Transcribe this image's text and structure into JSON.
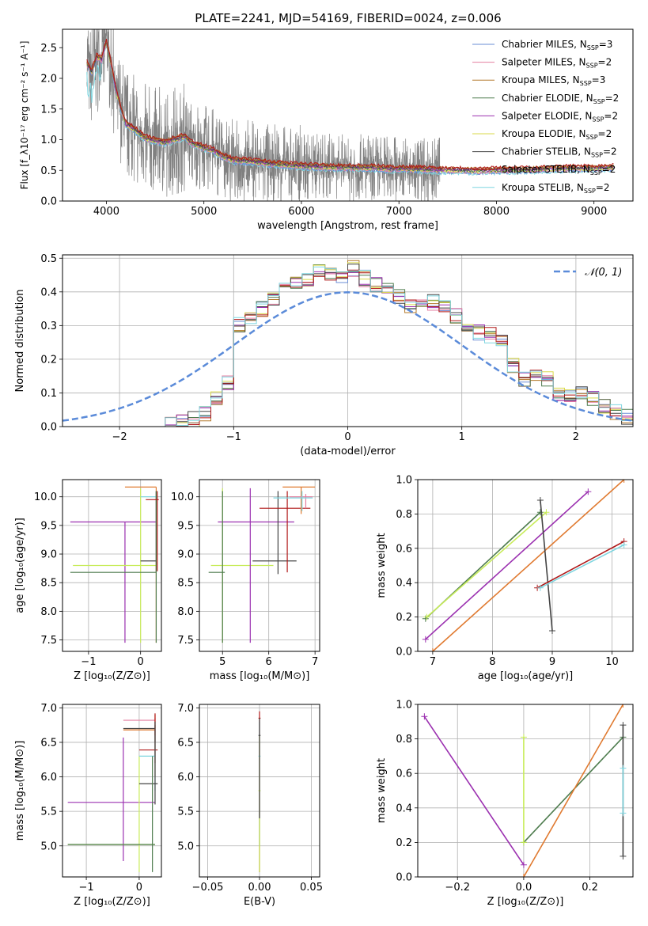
{
  "colors": {
    "chabrier_miles": "#6a8cd6",
    "salpeter_miles": "#e57fa0",
    "kroupa_miles": "#b3782a",
    "chabrier_elodie": "#4e7c4e",
    "salpeter_elodie": "#9b30b0",
    "kroupa_elodie": "#d9d94a",
    "chabrier_stelib": "#444444",
    "salpeter_stelib": "#b01818",
    "kroupa_stelib": "#7fd6e0",
    "data": "#808080",
    "normal": "#5b8bd9",
    "grid": "#b0b0b0",
    "orange": "#e07a30",
    "lime": "#c8ec5a"
  },
  "chart_data": [
    {
      "id": "spectrum",
      "type": "line",
      "title": "PLATE=2241, MJD=54169, FIBERID=0024, z=0.006",
      "xlabel": "wavelength [Angstrom, rest frame]",
      "ylabel": "Flux [f_λ10⁻¹⁷ erg cm⁻² s⁻¹ A⁻¹]",
      "xlim": [
        3550,
        9400
      ],
      "ylim": [
        0,
        2.8
      ],
      "xticks": [
        4000,
        5000,
        6000,
        7000,
        8000,
        9000
      ],
      "yticks": [
        0,
        0.5,
        1.0,
        1.5,
        2.0,
        2.5
      ],
      "ytick_labels": [
        "0.0",
        "0.5",
        "1.0",
        "1.5",
        "2.0",
        "2.5"
      ],
      "legend_position": "top-right",
      "legend": [
        {
          "name": "Chabrier MILES, N",
          "sub": "SSP",
          "suffix": "=3",
          "color": "#6a8cd6"
        },
        {
          "name": "Salpeter MILES, N",
          "sub": "SSP",
          "suffix": "=2",
          "color": "#e57fa0"
        },
        {
          "name": "Kroupa MILES, N",
          "sub": "SSP",
          "suffix": "=3",
          "color": "#b3782a"
        },
        {
          "name": "Chabrier ELODIE, N",
          "sub": "SSP",
          "suffix": "=2",
          "color": "#4e7c4e"
        },
        {
          "name": "Salpeter ELODIE, N",
          "sub": "SSP",
          "suffix": "=2",
          "color": "#9b30b0"
        },
        {
          "name": "Kroupa ELODIE, N",
          "sub": "SSP",
          "suffix": "=2",
          "color": "#d9d94a"
        },
        {
          "name": "Chabrier STELIB, N",
          "sub": "SSP",
          "suffix": "=2",
          "color": "#444444"
        },
        {
          "name": "Salpeter STELIB, N",
          "sub": "SSP",
          "suffix": "=2",
          "color": "#b01818"
        },
        {
          "name": "Kroupa STELIB, N",
          "sub": "SSP",
          "suffix": "=2",
          "color": "#7fd6e0"
        }
      ],
      "model_curve": {
        "x": [
          3800,
          3850,
          3900,
          3950,
          4000,
          4050,
          4100,
          4150,
          4200,
          4300,
          4400,
          4500,
          4600,
          4700,
          4800,
          4850,
          4900,
          5000,
          5100,
          5200,
          5300,
          5500,
          5700,
          5900,
          6100,
          6300,
          6500,
          6700,
          6900,
          7100,
          7300,
          7400,
          7600,
          7800,
          8000,
          8200,
          8400,
          8600,
          8800,
          9000,
          9200
        ],
        "y": [
          2.25,
          2.1,
          2.35,
          2.3,
          2.6,
          2.2,
          1.8,
          1.5,
          1.25,
          1.15,
          1.02,
          0.98,
          0.95,
          1.0,
          1.05,
          0.96,
          0.92,
          0.87,
          0.82,
          0.72,
          0.66,
          0.64,
          0.6,
          0.58,
          0.56,
          0.55,
          0.54,
          0.54,
          0.52,
          0.52,
          0.51,
          0.5,
          0.5,
          0.49,
          0.5,
          0.5,
          0.51,
          0.52,
          0.53,
          0.53,
          0.54
        ]
      }
    },
    {
      "id": "residuals",
      "type": "step",
      "xlabel": "(data-model)/error",
      "ylabel": "Normed distribution",
      "xlim": [
        -2.5,
        2.5
      ],
      "ylim": [
        0,
        0.51
      ],
      "xticks": [
        -2,
        -1,
        0,
        1,
        2
      ],
      "xtick_labels": [
        "−2",
        "−1",
        "0",
        "1",
        "2"
      ],
      "yticks": [
        0,
        0.1,
        0.2,
        0.3,
        0.4,
        0.5
      ],
      "ytick_labels": [
        "0.0",
        "0.1",
        "0.2",
        "0.3",
        "0.4",
        "0.5"
      ],
      "legend": [
        {
          "name": "𝒩(0, 1)",
          "style": "dashed"
        }
      ],
      "bin_width": 0.1,
      "bin_centers": [
        -1.55,
        -1.45,
        -1.35,
        -1.25,
        -1.15,
        -1.05,
        -0.95,
        -0.85,
        -0.75,
        -0.65,
        -0.55,
        -0.45,
        -0.35,
        -0.25,
        -0.15,
        -0.05,
        0.05,
        0.15,
        0.25,
        0.35,
        0.45,
        0.55,
        0.65,
        0.75,
        0.85,
        0.95,
        1.05,
        1.15,
        1.25,
        1.35,
        1.45,
        1.55,
        1.65,
        1.75,
        1.85,
        1.95,
        2.05,
        2.15,
        2.25,
        2.35,
        2.45
      ],
      "values": [
        0.005,
        0.01,
        0.02,
        0.04,
        0.09,
        0.13,
        0.3,
        0.32,
        0.35,
        0.38,
        0.44,
        0.42,
        0.43,
        0.46,
        0.45,
        0.44,
        0.47,
        0.44,
        0.42,
        0.41,
        0.39,
        0.36,
        0.38,
        0.37,
        0.36,
        0.33,
        0.3,
        0.28,
        0.27,
        0.25,
        0.18,
        0.14,
        0.15,
        0.14,
        0.1,
        0.09,
        0.1,
        0.08,
        0.06,
        0.04,
        0.03
      ],
      "curve": "standard normal"
    },
    {
      "id": "age_vs_Z",
      "type": "errorbar",
      "xlabel": "Z [log₁₀(Z/Z⊙)]",
      "ylabel": "age  [log₁₀(age/yr)]",
      "xlim": [
        -1.5,
        0.4
      ],
      "ylim": [
        7.3,
        10.3
      ],
      "xticks": [
        -1,
        0
      ],
      "xtick_labels": [
        "−1",
        "0"
      ],
      "yticks": [
        7.5,
        8.0,
        8.5,
        9.0,
        9.5,
        10.0
      ],
      "ytick_labels": [
        "7.5",
        "8.0",
        "8.5",
        "9.0",
        "9.5",
        "10.0"
      ]
    },
    {
      "id": "age_vs_mass",
      "type": "errorbar",
      "xlabel": "mass [log₁₀(M/M⊙)]",
      "ylabel": "",
      "xlim": [
        4.5,
        7.1
      ],
      "ylim": [
        7.3,
        10.3
      ],
      "xticks": [
        5,
        6,
        7
      ],
      "xtick_labels": [
        "5",
        "6",
        "7"
      ],
      "yticks": [
        7.5,
        8.0,
        8.5,
        9.0,
        9.5,
        10.0
      ],
      "ytick_labels": [
        "7.5",
        "8.0",
        "8.5",
        "9.0",
        "9.5",
        "10.0"
      ]
    },
    {
      "id": "weight_vs_age",
      "type": "line",
      "xlabel": "age  [log₁₀(age/yr)]",
      "ylabel": "mass weight",
      "xlim": [
        6.75,
        10.35
      ],
      "ylim": [
        0,
        1.0
      ],
      "xticks": [
        7,
        8,
        9,
        10
      ],
      "xtick_labels": [
        "7",
        "8",
        "9",
        "10"
      ],
      "yticks": [
        0,
        0.2,
        0.4,
        0.6,
        0.8,
        1.0
      ],
      "ytick_labels": [
        "0.0",
        "0.2",
        "0.4",
        "0.6",
        "0.8",
        "1.0"
      ],
      "series": [
        {
          "x": [
            6.88,
            8.8
          ],
          "y": [
            0.19,
            0.81
          ],
          "color": "#4e7c4e"
        },
        {
          "x": [
            6.9,
            8.9
          ],
          "y": [
            0.2,
            0.81
          ],
          "color": "#c8ec5a"
        },
        {
          "x": [
            6.88,
            9.6
          ],
          "y": [
            0.07,
            0.93
          ],
          "color": "#9b30b0"
        },
        {
          "x": [
            7.0,
            10.2
          ],
          "y": [
            0.0,
            1.0
          ],
          "color": "#e07a30"
        },
        {
          "x": [
            8.8,
            9.0
          ],
          "y": [
            0.88,
            0.12
          ],
          "color": "#444444"
        },
        {
          "x": [
            8.75,
            10.2
          ],
          "y": [
            0.37,
            0.64
          ],
          "color": "#b01818"
        },
        {
          "x": [
            8.8,
            10.2
          ],
          "y": [
            0.37,
            0.62
          ],
          "color": "#7fd6e0"
        }
      ]
    },
    {
      "id": "mass_vs_Z",
      "type": "errorbar",
      "xlabel": "Z [log₁₀(Z/Z⊙)]",
      "ylabel": "mass [log₁₀(M/M⊙)]",
      "xlim": [
        -1.45,
        0.42
      ],
      "ylim": [
        4.55,
        7.05
      ],
      "xticks": [
        -1,
        0
      ],
      "xtick_labels": [
        "−1",
        "0"
      ],
      "yticks": [
        5.0,
        5.5,
        6.0,
        6.5,
        7.0
      ],
      "ytick_labels": [
        "5.0",
        "5.5",
        "6.0",
        "6.5",
        "7.0"
      ]
    },
    {
      "id": "mass_vs_EBV",
      "type": "errorbar",
      "xlabel": "E(B-V)",
      "ylabel": "",
      "xlim": [
        -0.058,
        0.058
      ],
      "ylim": [
        4.55,
        7.05
      ],
      "xticks": [
        -0.05,
        0,
        0.05
      ],
      "xtick_labels": [
        "−0.05",
        "0.00",
        "0.05"
      ],
      "yticks": [
        5.0,
        5.5,
        6.0,
        6.5,
        7.0
      ],
      "ytick_labels": [
        "5.0",
        "5.5",
        "6.0",
        "6.5",
        "7.0"
      ]
    },
    {
      "id": "weight_vs_Z",
      "type": "line",
      "xlabel": "Z [log₁₀(Z/Z⊙)]",
      "ylabel": "mass weight",
      "xlim": [
        -0.32,
        0.33
      ],
      "ylim": [
        0,
        1.0
      ],
      "xticks": [
        -0.2,
        0,
        0.2
      ],
      "xtick_labels": [
        "−0.2",
        "0.0",
        "0.2"
      ],
      "yticks": [
        0,
        0.2,
        0.4,
        0.6,
        0.8,
        1.0
      ],
      "ytick_labels": [
        "0.0",
        "0.2",
        "0.4",
        "0.6",
        "0.8",
        "1.0"
      ],
      "series": [
        {
          "x": [
            -0.3,
            0.0
          ],
          "y": [
            0.93,
            0.07
          ],
          "color": "#9b30b0"
        },
        {
          "x": [
            0.0,
            0.3
          ],
          "y": [
            0.2,
            0.81
          ],
          "color": "#4e7c4e"
        },
        {
          "x": [
            0.0,
            0.0
          ],
          "y": [
            0.2,
            0.81
          ],
          "color": "#c8ec5a"
        },
        {
          "x": [
            0.0,
            0.3
          ],
          "y": [
            0.0,
            1.0
          ],
          "color": "#e07a30"
        },
        {
          "x": [
            0.3,
            0.3
          ],
          "y": [
            0.12,
            0.88
          ],
          "color": "#444444"
        },
        {
          "x": [
            0.3,
            0.3
          ],
          "y": [
            0.37,
            0.63
          ],
          "color": "#7fd6e0"
        }
      ]
    }
  ]
}
